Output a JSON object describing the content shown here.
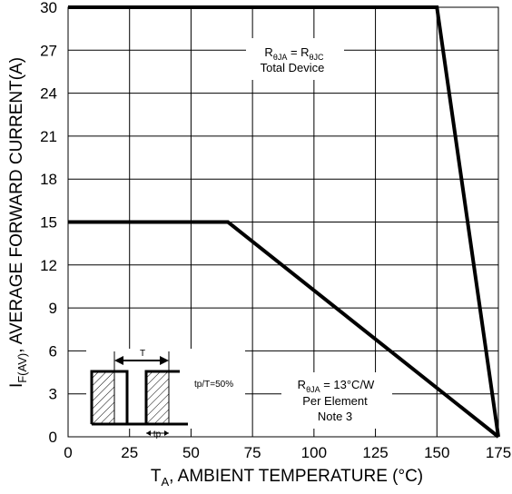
{
  "chart_data": {
    "type": "line",
    "xlabel": {
      "main": "T",
      "sub": "A",
      "rest": ", AMBIENT TEMPERATURE (°C)"
    },
    "ylabel": {
      "main": "I",
      "sub": "F(AV)",
      "rest": ", AVERAGE FORWARD CURRENT(A)"
    },
    "xlim": [
      0,
      175
    ],
    "ylim": [
      0,
      30
    ],
    "x_ticks": [
      0,
      25,
      50,
      75,
      100,
      125,
      150,
      175
    ],
    "y_ticks": [
      0,
      3,
      6,
      9,
      12,
      15,
      18,
      21,
      24,
      27,
      30
    ],
    "grid": true,
    "series": [
      {
        "x": [
          0,
          150,
          175
        ],
        "y": [
          30,
          30,
          0
        ]
      },
      {
        "x": [
          0,
          65,
          175
        ],
        "y": [
          15,
          15,
          0
        ]
      }
    ],
    "annotations": [
      {
        "lines": [
          {
            "main": "R",
            "sub": "θJA",
            "mid": " = R",
            "sub2": "θJC"
          },
          {
            "text": "Total Device"
          }
        ]
      },
      {
        "lines": [
          {
            "main": "R",
            "sub": "θJA",
            "mid": " = 13°C/W"
          },
          {
            "text": "Per Element"
          },
          {
            "text": "Note 3"
          }
        ]
      }
    ],
    "inset": {
      "period_label": "T",
      "pulse_label": "tp",
      "duty_label": "tp/T=50%"
    }
  }
}
